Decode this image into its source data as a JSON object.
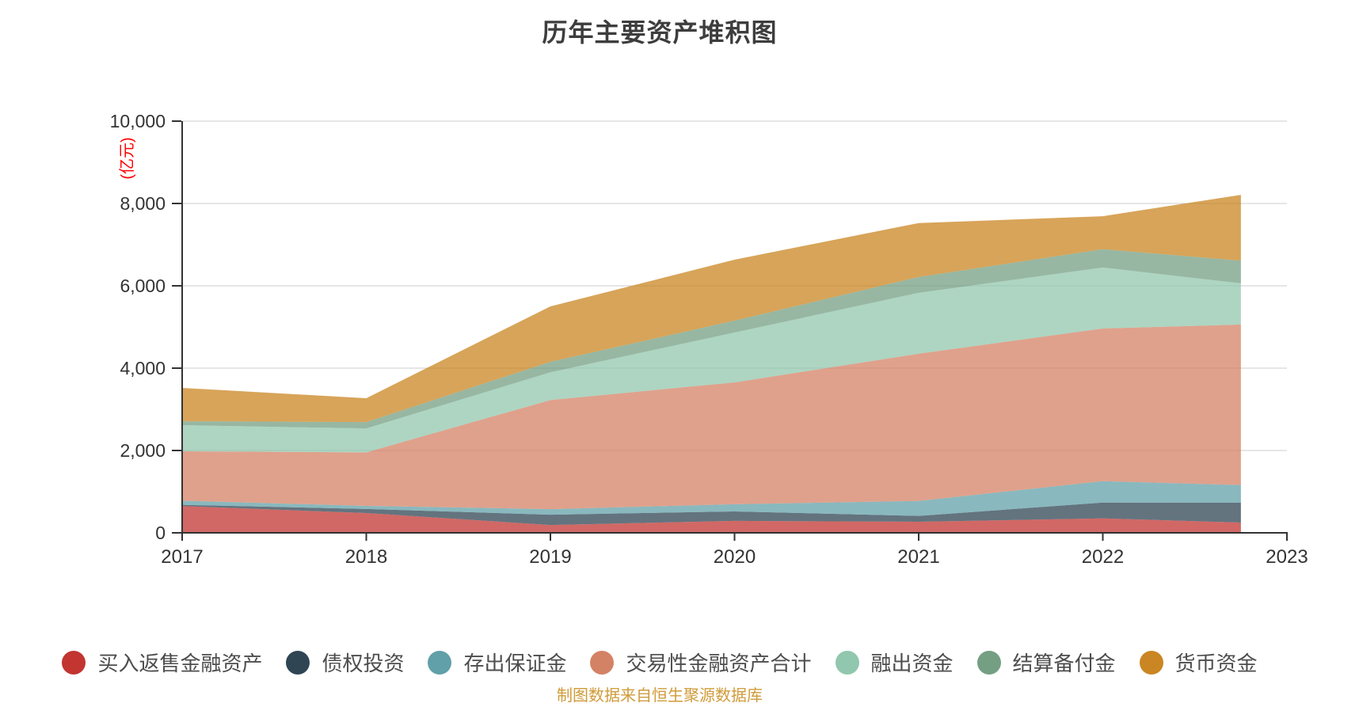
{
  "title": {
    "text": "历年主要资产堆积图"
  },
  "y_axis": {
    "unit_label": "(亿元)",
    "unit_label_color": "#ff0000",
    "ticks": [
      "0",
      "2,000",
      "4,000",
      "6,000",
      "8,000",
      "10,000"
    ]
  },
  "x_axis": {
    "ticks": [
      "2017",
      "2018",
      "2019",
      "2020",
      "2021",
      "2022",
      "2023"
    ]
  },
  "legend": {
    "items": [
      {
        "label": "买入返售金融资产",
        "color": "#c23531"
      },
      {
        "label": "债权投资",
        "color": "#2f4554"
      },
      {
        "label": "存出保证金",
        "color": "#61a0a8"
      },
      {
        "label": "交易性金融资产合计",
        "color": "#d48265"
      },
      {
        "label": "融出资金",
        "color": "#91c7ae"
      },
      {
        "label": "结算备付金",
        "color": "#749f83"
      },
      {
        "label": "货币资金",
        "color": "#ca8622"
      }
    ]
  },
  "footer": {
    "text": "制图数据来自恒生聚源数据库",
    "color": "#cf9b3a"
  },
  "chart_data": {
    "type": "area",
    "stacked": true,
    "title": "历年主要资产堆积图",
    "ylabel": "(亿元)",
    "ylim": [
      0,
      10000
    ],
    "grid": true,
    "legend_position": "bottom",
    "x": [
      2017,
      2018,
      2019,
      2020,
      2021,
      2022,
      2022.75
    ],
    "x_axis_range": [
      2017,
      2023
    ],
    "series": [
      {
        "name": "买入返售金融资产",
        "color": "#c23531",
        "values": [
          650,
          480,
          190,
          290,
          270,
          350,
          250
        ]
      },
      {
        "name": "债权投资",
        "color": "#2f4554",
        "values": [
          30,
          100,
          250,
          230,
          140,
          385,
          480
        ]
      },
      {
        "name": "存出保证金",
        "color": "#61a0a8",
        "values": [
          100,
          75,
          135,
          175,
          365,
          520,
          430
        ]
      },
      {
        "name": "交易性金融资产合计",
        "color": "#d48265",
        "values": [
          1200,
          1300,
          2650,
          2960,
          3575,
          3710,
          3900
        ]
      },
      {
        "name": "融出资金",
        "color": "#91c7ae",
        "values": [
          635,
          580,
          675,
          1210,
          1480,
          1480,
          1000
        ]
      },
      {
        "name": "结算备付金",
        "color": "#749f83",
        "values": [
          95,
          155,
          255,
          290,
          385,
          445,
          550
        ]
      },
      {
        "name": "货币资金",
        "color": "#ca8622",
        "values": [
          810,
          580,
          1345,
          1480,
          1310,
          800,
          1600
        ]
      }
    ],
    "totals": [
      3520,
      3270,
      5500,
      6635,
      7525,
      7690,
      8210
    ]
  }
}
